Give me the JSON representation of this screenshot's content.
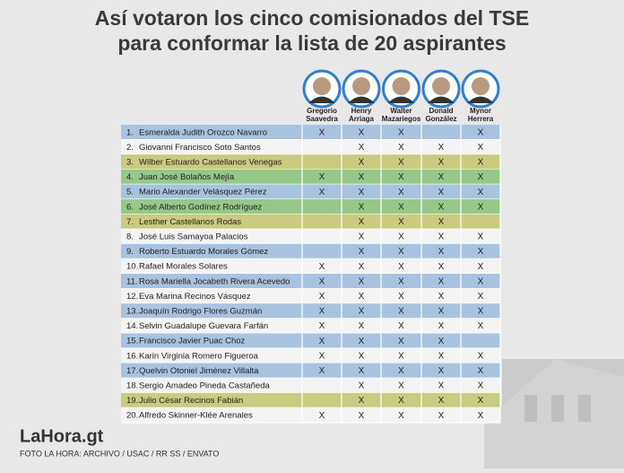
{
  "header": {
    "title_lines": [
      "Así votaron los cinco comisionados del TSE",
      "para  conformar la lista de 20 aspirantes"
    ]
  },
  "commissioners": [
    [
      "Gregorio",
      "Saavedra"
    ],
    [
      "Henry",
      "Arriaga"
    ],
    [
      "Walter",
      "Mazariegos"
    ],
    [
      "Donald",
      "González"
    ],
    [
      "Mynor",
      "Herrera"
    ]
  ],
  "table": {
    "rows": [
      {
        "number": "1.",
        "name": "Esmeralda Judith Orozco Navarro",
        "color": "#a8c3df",
        "votes": [
          "X",
          "X",
          "X",
          null,
          "X"
        ]
      },
      {
        "number": "2.",
        "name": "Giovanni Francisco Soto Santos",
        "color": "#f4f4f4",
        "votes": [
          null,
          "X",
          "X",
          "X",
          "X"
        ]
      },
      {
        "number": "3.",
        "name": "Wilber Estuardo Castellanos Venegas",
        "color": "#cbcb80",
        "votes": [
          null,
          "X",
          "X",
          "X",
          "X"
        ]
      },
      {
        "number": "4.",
        "name": "Juan José Bolaños Mejía",
        "color": "#94c98a",
        "votes": [
          "X",
          "X",
          "X",
          "X",
          "X"
        ]
      },
      {
        "number": "5.",
        "name": "Mario Alexander Velásquez Pérez",
        "color": "#a8c3df",
        "votes": [
          "X",
          "X",
          "X",
          "X",
          "X"
        ]
      },
      {
        "number": "6.",
        "name": "José Alberto Godínez Rodríguez",
        "color": "#94c98a",
        "votes": [
          null,
          "X",
          "X",
          "X",
          "X"
        ]
      },
      {
        "number": "7.",
        "name": "Lesther Castellanos Rodas",
        "color": "#cbcb80",
        "votes": [
          null,
          "X",
          "X",
          "X",
          null
        ]
      },
      {
        "number": "8.",
        "name": "José Luis Samayoa Palacios",
        "color": "#f4f4f4",
        "votes": [
          null,
          "X",
          "X",
          "X",
          "X"
        ]
      },
      {
        "number": "9.",
        "name": "Roberto Estuardo Morales Gómez",
        "color": "#a8c3df",
        "votes": [
          null,
          "X",
          "X",
          "X",
          "X"
        ]
      },
      {
        "number": "10.",
        "name": "Rafael Morales Solares",
        "color": "#f4f4f4",
        "votes": [
          "X",
          "X",
          "X",
          "X",
          "X"
        ]
      },
      {
        "number": "11.",
        "name": "Rosa Mariella Jocabeth Rivera Acevedo",
        "color": "#a8c3df",
        "votes": [
          "X",
          "X",
          "X",
          "X",
          "X"
        ]
      },
      {
        "number": "12.",
        "name": "Eva Marina Recinos Vásquez",
        "color": "#f4f4f4",
        "votes": [
          "X",
          "X",
          "X",
          "X",
          "X"
        ]
      },
      {
        "number": "13.",
        "name": "Joaquín Rodrigo Flores Guzmán",
        "color": "#a8c3df",
        "votes": [
          "X",
          "X",
          "X",
          "X",
          "X"
        ]
      },
      {
        "number": "14.",
        "name": "Selvin Guadalupe Guevara Farfán",
        "color": "#f4f4f4",
        "votes": [
          "X",
          "X",
          "X",
          "X",
          "X"
        ]
      },
      {
        "number": "15.",
        "name": "Francisco Javier Puac Choz",
        "color": "#a8c3df",
        "votes": [
          "X",
          "X",
          "X",
          "X",
          null
        ]
      },
      {
        "number": "16.",
        "name": "Karin Virginia Romero Figueroa",
        "color": "#f4f4f4",
        "votes": [
          "X",
          "X",
          "X",
          "X",
          "X"
        ]
      },
      {
        "number": "17.",
        "name": "Quelvin Otoniel Jiménez Villalta",
        "color": "#a8c3df",
        "votes": [
          "X",
          "X",
          "X",
          "X",
          "X"
        ]
      },
      {
        "number": "18.",
        "name": "Sergio Amadeo Pineda Castañeda",
        "color": "#f4f4f4",
        "votes": [
          null,
          "X",
          "X",
          "X",
          "X"
        ]
      },
      {
        "number": "19.",
        "name": "Julio César Recinos Fabián",
        "color": "#cbcb80",
        "votes": [
          null,
          "X",
          "X",
          "X",
          "X"
        ]
      },
      {
        "number": "20.",
        "name": "Alfredo Skinner-Klée Arenales",
        "color": "#f4f4f4",
        "votes": [
          "X",
          "X",
          "X",
          "X",
          "X"
        ]
      }
    ]
  },
  "footer": {
    "logo": "LaHora.gt",
    "credit": "FOTO LA HORA:  ARCHIVO / USAC / RR SS / ENVATO"
  }
}
